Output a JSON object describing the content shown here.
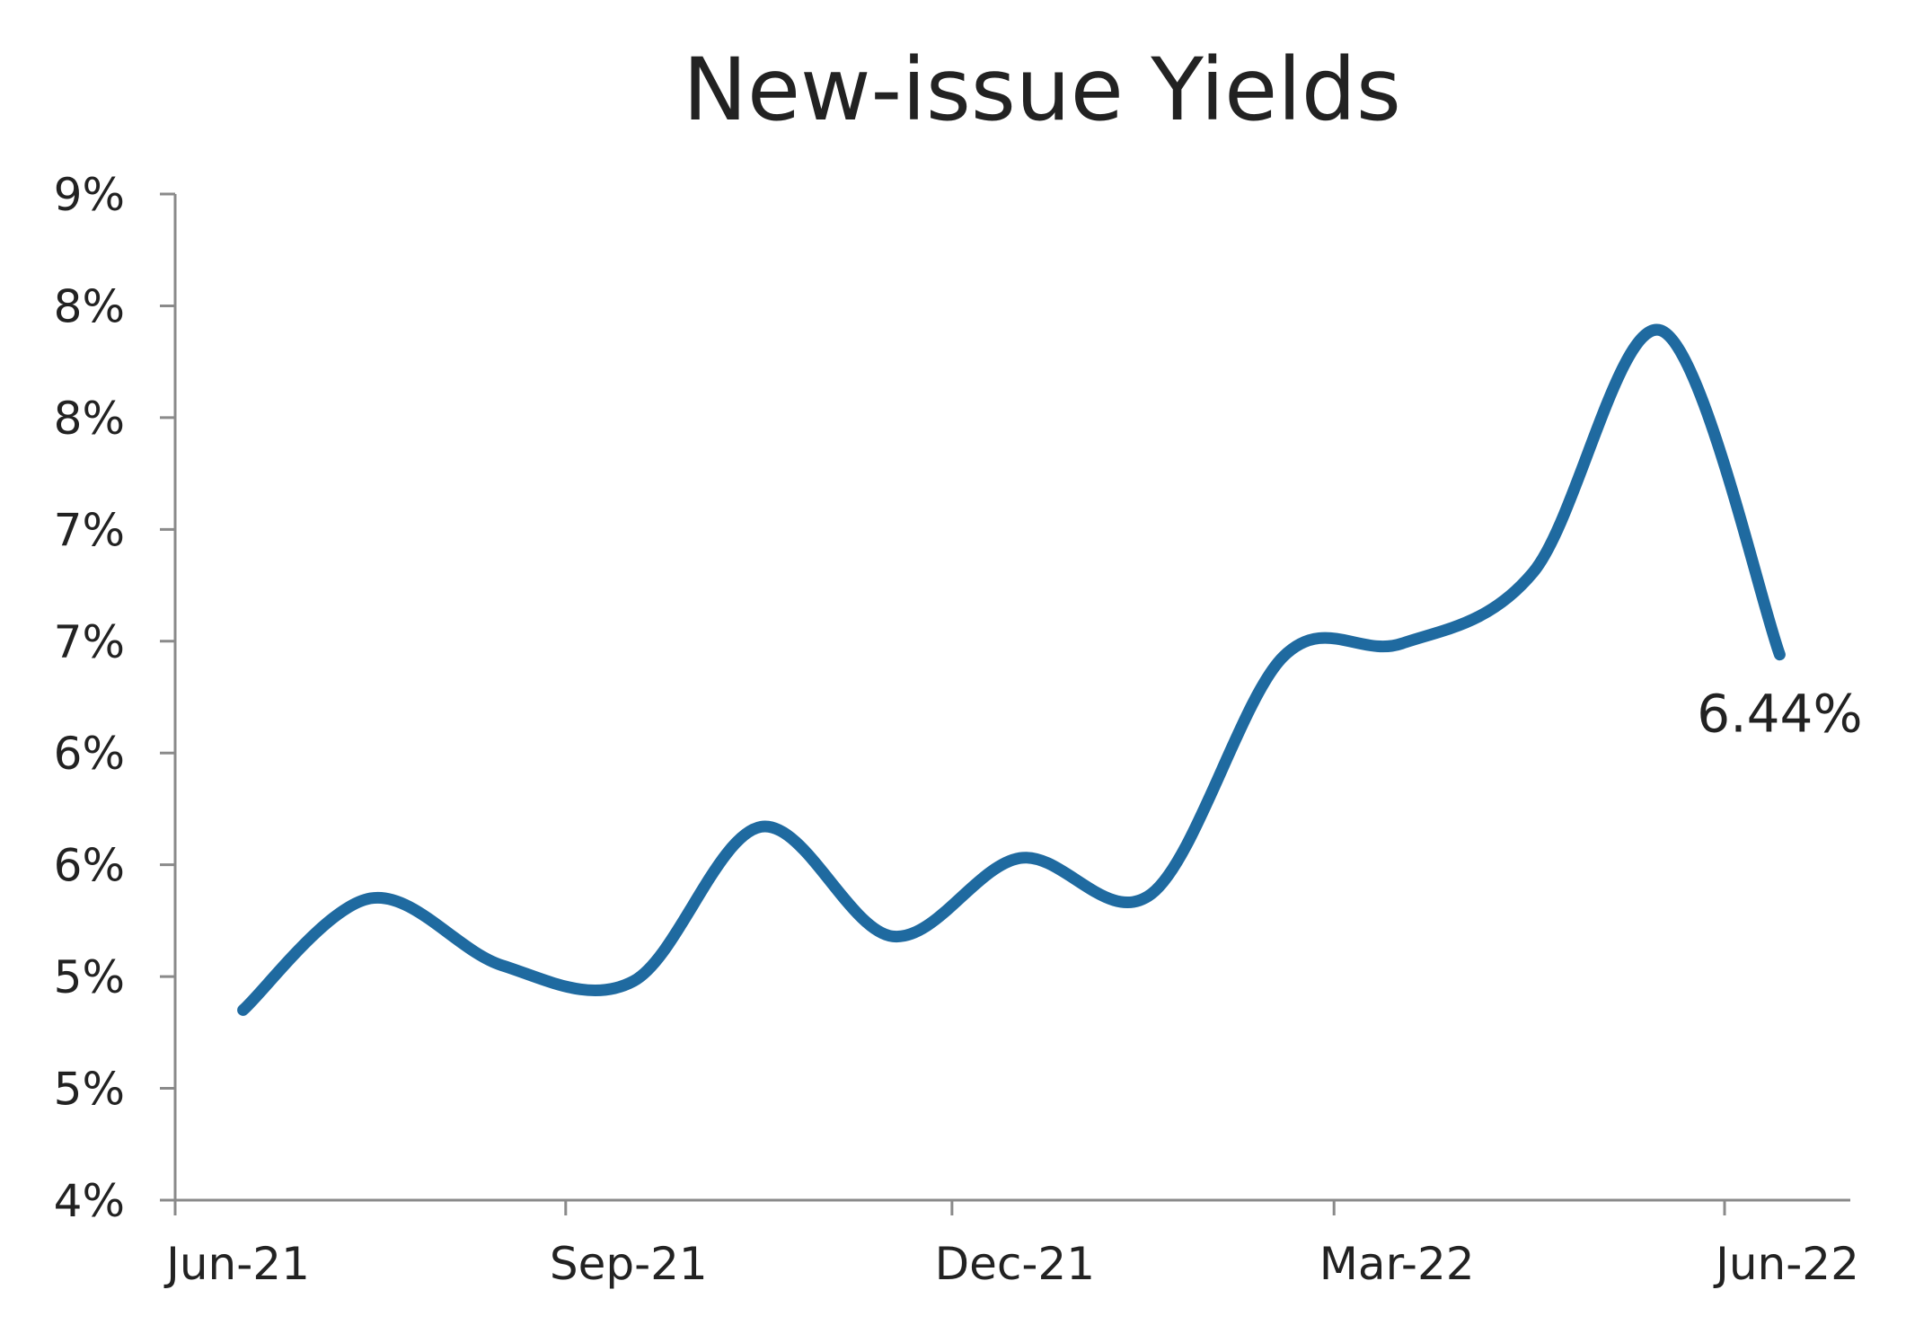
{
  "chart_data": {
    "type": "line",
    "title": "New-issue Yields",
    "xlabel": "",
    "ylabel": "",
    "x_tick_labels": [
      "Jun-21",
      "Sep-21",
      "Dec-21",
      "Mar-22",
      "Jun-22"
    ],
    "y_tick_labels": [
      "4%",
      "5%",
      "5%",
      "6%",
      "6%",
      "7%",
      "7%",
      "8%",
      "8%",
      "9%"
    ],
    "ylim": [
      4.0,
      8.5
    ],
    "y_ticks": [
      4.0,
      4.5,
      5.0,
      5.5,
      6.0,
      6.5,
      7.0,
      7.5,
      8.0,
      8.5
    ],
    "xlim": [
      "2021-06-01",
      "2022-06-01"
    ],
    "grid": false,
    "series": [
      {
        "color": "#1f6aa0",
        "x": [
          "2021-06-17",
          "2021-07-17",
          "2021-08-17",
          "2021-09-17",
          "2021-10-17",
          "2021-11-17",
          "2021-12-17",
          "2022-01-17",
          "2022-02-17",
          "2022-03-17",
          "2022-04-17",
          "2022-05-17",
          "2022-06-14"
        ],
        "values": [
          4.85,
          5.35,
          5.05,
          4.98,
          5.67,
          5.18,
          5.53,
          5.37,
          6.43,
          6.49,
          6.81,
          7.89,
          6.44
        ]
      }
    ],
    "annotations": [
      {
        "text": "6.44%",
        "x": "2022-06-14",
        "y": 6.44
      }
    ]
  }
}
